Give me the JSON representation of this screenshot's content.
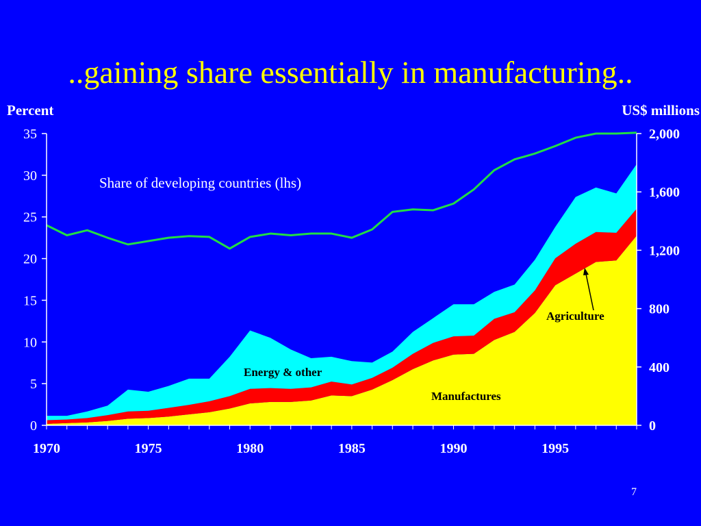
{
  "slide": {
    "title": "..gaining share essentially in manufacturing..",
    "page_number": "7"
  },
  "colors": {
    "background": "#0000ff",
    "title": "#ffff00",
    "manufactures": "#ffff00",
    "agriculture": "#ff0000",
    "energy_other": "#00ffff",
    "share_line": "#22dd44",
    "axis_text": "#ffffff",
    "annotation_text": "#000000"
  },
  "chart_data": {
    "type": "area",
    "title": "",
    "left_axis": {
      "label": "Percent",
      "range": [
        0,
        35
      ],
      "ticks": [
        "0",
        "5",
        "10",
        "15",
        "20",
        "25",
        "30",
        "35"
      ]
    },
    "right_axis": {
      "label": "US$ millions",
      "range": [
        0,
        2000
      ],
      "ticks": [
        "0",
        "400",
        "800",
        "1,200",
        "1,600",
        "2,000"
      ]
    },
    "x": [
      1970,
      1971,
      1972,
      1973,
      1974,
      1975,
      1976,
      1977,
      1978,
      1979,
      1980,
      1981,
      1982,
      1983,
      1984,
      1985,
      1986,
      1987,
      1988,
      1989,
      1990,
      1991,
      1992,
      1993,
      1994,
      1995,
      1996,
      1997,
      1998,
      1999
    ],
    "x_tick_labels": [
      "1970",
      "1975",
      "1980",
      "1985",
      "1990",
      "1995"
    ],
    "stacked_series": [
      {
        "name": "Manufactures",
        "axis": "right",
        "values": [
          10,
          15,
          20,
          30,
          45,
          50,
          60,
          75,
          90,
          115,
          150,
          160,
          160,
          170,
          205,
          200,
          245,
          310,
          385,
          445,
          485,
          490,
          585,
          640,
          770,
          960,
          1040,
          1120,
          1130,
          1300
        ]
      },
      {
        "name": "Agriculture",
        "axis": "right",
        "values": [
          25,
          25,
          30,
          40,
          50,
          50,
          60,
          65,
          75,
          85,
          100,
          95,
          90,
          90,
          95,
          80,
          80,
          85,
          105,
          120,
          125,
          125,
          145,
          135,
          155,
          185,
          205,
          205,
          190,
          185
        ]
      },
      {
        "name": "Energy & other",
        "axis": "right",
        "values": [
          30,
          25,
          45,
          65,
          150,
          130,
          150,
          180,
          155,
          270,
          400,
          345,
          270,
          200,
          170,
          160,
          105,
          110,
          150,
          170,
          220,
          215,
          185,
          190,
          210,
          215,
          320,
          305,
          270,
          305
        ]
      }
    ],
    "line_series": {
      "name": "Share of developing countries (lhs)",
      "axis": "left",
      "values": [
        24.0,
        22.8,
        23.4,
        22.5,
        21.7,
        22.1,
        22.5,
        22.7,
        22.6,
        21.2,
        22.6,
        23.0,
        22.8,
        23.0,
        23.0,
        22.5,
        23.5,
        25.6,
        25.9,
        25.8,
        26.6,
        28.3,
        30.6,
        31.9,
        32.6,
        33.5,
        34.5,
        35.0,
        35.0,
        35.1
      ]
    },
    "annotations": [
      {
        "text": "Share of developing countries (lhs)",
        "target": "line_series"
      },
      {
        "text": "Energy & other",
        "target": "Energy & other"
      },
      {
        "text": "Agriculture",
        "target": "Agriculture",
        "arrow": true
      },
      {
        "text": "Manufactures",
        "target": "Manufactures"
      }
    ],
    "grid": false,
    "legend": "none"
  }
}
